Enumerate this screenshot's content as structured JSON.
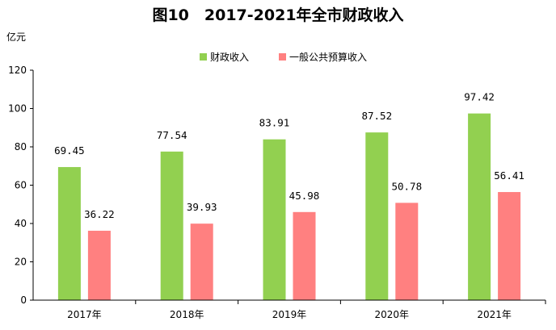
{
  "chart_data": {
    "type": "bar",
    "title": "图10　2017-2021年全市财政收入",
    "ylabel": "亿元",
    "xlabel": "",
    "ylim": [
      0,
      120
    ],
    "yticks": [
      0,
      20,
      40,
      60,
      80,
      100,
      120
    ],
    "grid": false,
    "legend_position": "top-center",
    "categories": [
      "2017年",
      "2018年",
      "2019年",
      "2020年",
      "2021年"
    ],
    "series": [
      {
        "name": "财政收入",
        "color": "#92d050",
        "values": [
          69.45,
          77.54,
          83.91,
          87.52,
          97.42
        ],
        "labels": [
          "69.45",
          "77.54",
          "83.91",
          "87.52",
          "97.42"
        ]
      },
      {
        "name": "一般公共预算收入",
        "color": "#ff8080",
        "values": [
          36.22,
          39.93,
          45.98,
          50.78,
          56.41
        ],
        "labels": [
          "36.22",
          "39.93",
          "45.98",
          "50.78",
          "56.41"
        ]
      }
    ]
  }
}
